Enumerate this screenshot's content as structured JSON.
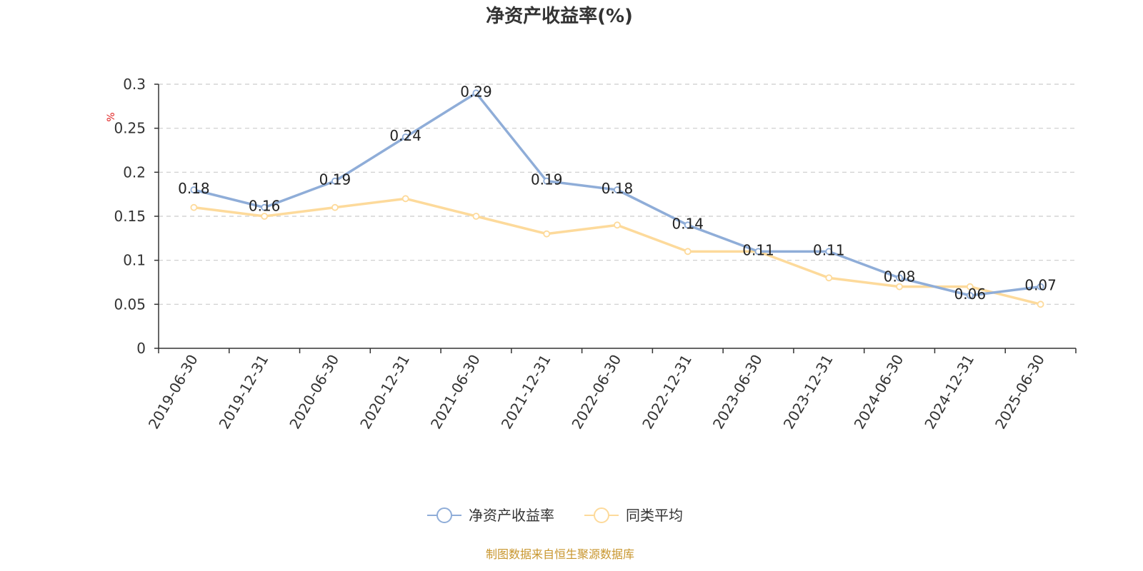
{
  "chart_data": {
    "type": "line",
    "title": "净资产收益率(%)",
    "ylabel": "%",
    "xlabel": "",
    "categories": [
      "2019-06-30",
      "2019-12-31",
      "2020-06-30",
      "2020-12-31",
      "2021-06-30",
      "2021-12-31",
      "2022-06-30",
      "2022-12-31",
      "2023-06-30",
      "2023-12-31",
      "2024-06-30",
      "2024-12-31",
      "2025-06-30"
    ],
    "ylim": [
      0,
      0.3
    ],
    "yticks": [
      "0",
      "0.05",
      "0.1",
      "0.15",
      "0.2",
      "0.25",
      "0.3"
    ],
    "ytick_values": [
      0,
      0.05,
      0.1,
      0.15,
      0.2,
      0.25,
      0.3
    ],
    "grid": true,
    "legend_position": "bottom",
    "series": [
      {
        "name": "净资产收益率",
        "color": "#8FADD8",
        "values": [
          0.18,
          0.16,
          0.19,
          0.24,
          0.29,
          0.19,
          0.18,
          0.14,
          0.11,
          0.11,
          0.08,
          0.06,
          0.07
        ],
        "labels": [
          "0.18",
          "0.16",
          "0.19",
          "0.24",
          "0.29",
          "0.19",
          "0.18",
          "0.14",
          "0.11",
          "0.11",
          "0.08",
          "0.06",
          "0.07"
        ]
      },
      {
        "name": "同类平均",
        "color": "#FDDA9B",
        "values": [
          0.16,
          0.15,
          0.16,
          0.17,
          0.15,
          0.13,
          0.14,
          0.11,
          0.11,
          0.08,
          0.07,
          0.07,
          0.05
        ]
      }
    ]
  },
  "colors": {
    "axis": "#333333",
    "grid": "#CCCCCC",
    "unit": "#E02020",
    "source": "#C8962E"
  },
  "footer": {
    "source": "制图数据来自恒生聚源数据库"
  }
}
